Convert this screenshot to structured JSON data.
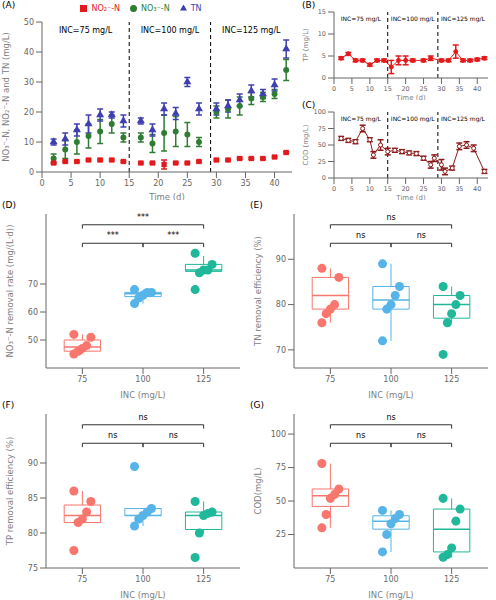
{
  "chart_data": [
    {
      "panel": "(A)",
      "type": "scatter",
      "x_label": "Time (d)",
      "y_label": "NO₃⁻-N, NO₂⁻-N and TN (mg/L)",
      "xlim": [
        0,
        43
      ],
      "xticks": [
        0,
        5,
        10,
        15,
        20,
        25,
        30,
        35,
        40
      ],
      "ylim": [
        0,
        50
      ],
      "yticks": [
        0,
        10,
        20,
        30,
        40,
        50
      ],
      "legend": "top",
      "phases": [
        {
          "label": "INC=75 mg/L",
          "start": 0,
          "end": 15
        },
        {
          "label": "INC=100 mg/L",
          "start": 15,
          "end": 29
        },
        {
          "label": "INC=125 mg/L",
          "start": 29,
          "end": 43
        }
      ],
      "series": [
        {
          "name": "NO₃⁻-N",
          "color": "#2E7D32",
          "marker": "circle",
          "x": [
            2,
            4,
            6,
            8,
            10,
            12,
            14,
            17,
            19,
            21,
            23,
            25,
            27,
            30,
            32,
            34,
            36,
            38,
            40,
            42
          ],
          "values": [
            4.5,
            7.5,
            10,
            12,
            13.5,
            16,
            11.5,
            11.5,
            9.5,
            13,
            13.5,
            12.5,
            10,
            20,
            21,
            22,
            24.5,
            25,
            26,
            34
          ],
          "errors": [
            1.5,
            3,
            4,
            4,
            4,
            3,
            1.5,
            1.5,
            3,
            6,
            5,
            4,
            1.5,
            2,
            3,
            3,
            2,
            1.5,
            1.5,
            3.5
          ]
        },
        {
          "name": "NO₂⁻-N",
          "color": "#E31A1C",
          "marker": "square",
          "x": [
            2,
            4,
            6,
            8,
            10,
            12,
            14,
            17,
            19,
            21,
            23,
            25,
            27,
            30,
            32,
            34,
            36,
            38,
            40,
            42
          ],
          "values": [
            3,
            3.5,
            3.5,
            4,
            4,
            4,
            3.5,
            3,
            3,
            2.5,
            3,
            3,
            3.5,
            4,
            4,
            4.5,
            4.5,
            4.5,
            5,
            6.5
          ],
          "errors": [
            0.3,
            0.3,
            0.3,
            0.3,
            0.3,
            0.3,
            0.3,
            0.3,
            0.3,
            1.5,
            0.3,
            0.3,
            0.3,
            0.3,
            0.3,
            0.3,
            0.3,
            0.3,
            0.3,
            0.3
          ]
        },
        {
          "name": "TN",
          "color": "#3F3FB0",
          "marker": "triangle",
          "x": [
            2,
            4,
            6,
            8,
            10,
            12,
            14,
            17,
            19,
            21,
            23,
            25,
            27,
            30,
            32,
            34,
            36,
            38,
            40,
            42
          ],
          "values": [
            10,
            11,
            14,
            16,
            19,
            19,
            17,
            17,
            14,
            21,
            19.5,
            30,
            21,
            21,
            22,
            24,
            27,
            26,
            29,
            41
          ],
          "errors": [
            1,
            2,
            2,
            3,
            2,
            1,
            2,
            1,
            2,
            2,
            2,
            1.5,
            2,
            2,
            2,
            2,
            2,
            1.5,
            2,
            3
          ]
        }
      ]
    },
    {
      "panel": "(B)",
      "type": "line",
      "x_label": "Time (d)",
      "y_label": "TP (mg/L)",
      "xlim": [
        0,
        43
      ],
      "xticks": [
        0,
        5,
        10,
        15,
        20,
        25,
        30,
        35,
        40
      ],
      "ylim": [
        0,
        15
      ],
      "yticks": [
        0,
        5,
        10,
        15
      ],
      "phases": [
        {
          "label": "INC=75 mg/L",
          "start": 0,
          "end": 15
        },
        {
          "label": "INC=100 mg/L",
          "start": 15,
          "end": 29
        },
        {
          "label": "INC=125 mg/L",
          "start": 29,
          "end": 43
        }
      ],
      "series": [
        {
          "color": "#E31A1C",
          "marker": "circle",
          "x": [
            2,
            4,
            6,
            8,
            10,
            12,
            14,
            16,
            18,
            20,
            22,
            25,
            27,
            30,
            32,
            34,
            36,
            38,
            40,
            42
          ],
          "values": [
            4.5,
            5.5,
            4,
            4,
            3,
            4,
            4,
            2.5,
            4,
            4,
            4,
            4,
            4.5,
            4,
            4,
            6,
            4,
            4,
            4.2,
            4.5
          ],
          "errors": [
            0.3,
            0.3,
            0.3,
            0.3,
            0.3,
            0.3,
            0.3,
            1.5,
            1,
            1,
            0.3,
            0.3,
            0.5,
            0.3,
            0.3,
            1.5,
            0.3,
            0.3,
            0.3,
            0.3
          ]
        }
      ]
    },
    {
      "panel": "(C)",
      "type": "line",
      "x_label": "Time (d)",
      "y_label": "COD (mg/L)",
      "xlim": [
        0,
        43
      ],
      "xticks": [
        0,
        5,
        10,
        15,
        20,
        25,
        30,
        35,
        40
      ],
      "ylim": [
        0,
        100
      ],
      "yticks": [
        0,
        25,
        50,
        75,
        100
      ],
      "phases": [
        {
          "label": "INC=75 mg/L",
          "start": 0,
          "end": 15
        },
        {
          "label": "INC=100 mg/L",
          "start": 15,
          "end": 29
        },
        {
          "label": "INC=125 mg/L",
          "start": 29,
          "end": 43
        }
      ],
      "series": [
        {
          "color": "#8B1A1A",
          "marker": "open circle",
          "x": [
            2,
            4,
            6,
            8,
            10,
            11,
            13,
            15,
            17,
            19,
            21,
            23,
            25,
            27,
            28,
            30,
            31,
            33,
            35,
            37,
            39,
            42
          ],
          "values": [
            60,
            57,
            55,
            75,
            58,
            35,
            50,
            40,
            42,
            40,
            38,
            37,
            30,
            20,
            30,
            20,
            10,
            15,
            48,
            50,
            45,
            10
          ],
          "errors": [
            3,
            3,
            3,
            5,
            3,
            5,
            8,
            5,
            3,
            3,
            3,
            3,
            3,
            5,
            5,
            8,
            5,
            3,
            5,
            5,
            5,
            3
          ]
        }
      ]
    },
    {
      "panel": "(D)",
      "type": "box",
      "x_label": "INC (mg/L)",
      "y_label": "NO₃⁻-N removal rate (mg/(L·d))",
      "ylim": [
        40,
        95
      ],
      "yticks": [
        50,
        60,
        70
      ],
      "categories": [
        "75",
        "100",
        "125"
      ],
      "colors": [
        "#F8766D",
        "#56B4E9",
        "#1FB89A"
      ],
      "boxes": [
        {
          "min": 45,
          "q1": 46,
          "median": 47.5,
          "q3": 50,
          "max": 52,
          "points": [
            45,
            46,
            47,
            48,
            51,
            52
          ]
        },
        {
          "min": 63,
          "q1": 65.5,
          "median": 66.5,
          "q3": 67,
          "max": 68,
          "points": [
            63,
            65,
            66,
            67,
            67,
            68
          ]
        },
        {
          "min": 74,
          "q1": 74.5,
          "median": 75,
          "q3": 77,
          "max": 80,
          "points": [
            68,
            74,
            75,
            75,
            77,
            81
          ]
        }
      ],
      "comparisons": [
        {
          "groups": [
            "75",
            "100"
          ],
          "label": "***"
        },
        {
          "groups": [
            "100",
            "125"
          ],
          "label": "***"
        },
        {
          "groups": [
            "75",
            "125"
          ],
          "label": "***"
        }
      ]
    },
    {
      "panel": "(E)",
      "type": "box",
      "x_label": "INC (mg/L)",
      "y_label": "TN removal efficiency (%)",
      "ylim": [
        66,
        100
      ],
      "yticks": [
        70,
        80,
        90
      ],
      "categories": [
        "75",
        "100",
        "125"
      ],
      "colors": [
        "#F8766D",
        "#56B4E9",
        "#1FB89A"
      ],
      "boxes": [
        {
          "min": 76,
          "q1": 79,
          "median": 82,
          "q3": 86,
          "max": 88,
          "points": [
            76,
            78,
            79,
            80,
            86,
            88
          ]
        },
        {
          "min": 72,
          "q1": 79,
          "median": 81,
          "q3": 84,
          "max": 89,
          "points": [
            72,
            79,
            80,
            82,
            84,
            89
          ]
        },
        {
          "min": 76,
          "q1": 77,
          "median": 80,
          "q3": 82,
          "max": 84,
          "points": [
            69,
            76,
            78,
            80,
            82,
            84
          ]
        }
      ],
      "comparisons": [
        {
          "groups": [
            "75",
            "100"
          ],
          "label": "ns"
        },
        {
          "groups": [
            "100",
            "125"
          ],
          "label": "ns"
        },
        {
          "groups": [
            "75",
            "125"
          ],
          "label": "ns"
        }
      ]
    },
    {
      "panel": "(F)",
      "type": "box",
      "x_label": "INC (mg/L)",
      "y_label": "TP removal efficiency (%)",
      "ylim": [
        75,
        97
      ],
      "yticks": [
        75,
        80,
        85,
        90
      ],
      "categories": [
        "75",
        "100",
        "125"
      ],
      "colors": [
        "#F8766D",
        "#56B4E9",
        "#1FB89A"
      ],
      "boxes": [
        {
          "min": 81.5,
          "q1": 81.5,
          "median": 82.5,
          "q3": 84,
          "max": 86,
          "points": [
            77.5,
            81.5,
            82,
            83,
            84.5,
            86
          ]
        },
        {
          "min": 81,
          "q1": 82.5,
          "median": 82.5,
          "q3": 83.5,
          "max": 83.5,
          "points": [
            81,
            82,
            82.5,
            83,
            83.5,
            89.5
          ]
        },
        {
          "min": 80,
          "q1": 80.5,
          "median": 82.5,
          "q3": 83,
          "max": 84.5,
          "points": [
            76.5,
            80,
            82.5,
            82.8,
            83,
            84.5
          ]
        }
      ],
      "comparisons": [
        {
          "groups": [
            "75",
            "100"
          ],
          "label": "ns"
        },
        {
          "groups": [
            "100",
            "125"
          ],
          "label": "ns"
        },
        {
          "groups": [
            "75",
            "125"
          ],
          "label": "ns"
        }
      ]
    },
    {
      "panel": "(G)",
      "type": "box",
      "x_label": "INC (mg/L)",
      "y_label": "COD(mg/L)",
      "ylim": [
        0,
        115
      ],
      "yticks": [
        25,
        50,
        75,
        100
      ],
      "categories": [
        "75",
        "100",
        "125"
      ],
      "colors": [
        "#F8766D",
        "#56B4E9",
        "#1FB89A"
      ],
      "boxes": [
        {
          "min": 30,
          "q1": 46,
          "median": 54,
          "q3": 59,
          "max": 78,
          "points": [
            30,
            40,
            52,
            55,
            59,
            78
          ]
        },
        {
          "min": 12,
          "q1": 29,
          "median": 35,
          "q3": 39,
          "max": 43,
          "points": [
            12,
            25,
            33,
            37,
            40,
            43
          ]
        },
        {
          "min": 8,
          "q1": 12,
          "median": 29,
          "q3": 44,
          "max": 52,
          "points": [
            8,
            10,
            15,
            35,
            44,
            52
          ]
        }
      ],
      "comparisons": [
        {
          "groups": [
            "75",
            "100"
          ],
          "label": "ns"
        },
        {
          "groups": [
            "100",
            "125"
          ],
          "label": "ns"
        },
        {
          "groups": [
            "75",
            "125"
          ],
          "label": "ns"
        }
      ]
    }
  ]
}
